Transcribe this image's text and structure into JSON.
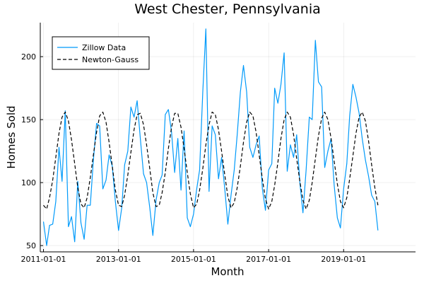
{
  "chart_data": {
    "type": "line",
    "title": "West Chester, Pennsylvania",
    "xlabel": "Month",
    "ylabel": "Homes Sold",
    "xlim": [
      "2010-12-01",
      "2020-12-01"
    ],
    "ylim": [
      45,
      227
    ],
    "x_ticks": [
      "2011-01-01",
      "2013-01-01",
      "2015-01-01",
      "2017-01-01",
      "2019-01-01"
    ],
    "y_ticks": [
      50,
      100,
      150,
      200
    ],
    "grid": true,
    "legend_position": "top-left",
    "series": [
      {
        "name": "Zillow Data",
        "color": "#009AFA",
        "style": "solid",
        "points": [
          [
            "2011-01-01",
            69
          ],
          [
            "2011-02-01",
            50
          ],
          [
            "2011-03-01",
            66
          ],
          [
            "2011-04-01",
            67
          ],
          [
            "2011-05-01",
            85
          ],
          [
            "2011-06-01",
            128
          ],
          [
            "2011-07-01",
            101
          ],
          [
            "2011-08-01",
            157
          ],
          [
            "2011-09-01",
            65
          ],
          [
            "2011-10-01",
            73
          ],
          [
            "2011-11-01",
            53
          ],
          [
            "2011-12-01",
            101
          ],
          [
            "2012-01-01",
            68
          ],
          [
            "2012-02-01",
            55
          ],
          [
            "2012-03-01",
            82
          ],
          [
            "2012-04-01",
            82
          ],
          [
            "2012-05-01",
            118
          ],
          [
            "2012-06-01",
            147
          ],
          [
            "2012-07-01",
            145
          ],
          [
            "2012-08-01",
            95
          ],
          [
            "2012-09-01",
            102
          ],
          [
            "2012-10-01",
            122
          ],
          [
            "2012-11-01",
            113
          ],
          [
            "2012-12-01",
            85
          ],
          [
            "2013-01-01",
            62
          ],
          [
            "2013-02-01",
            80
          ],
          [
            "2013-03-01",
            114
          ],
          [
            "2013-04-01",
            125
          ],
          [
            "2013-05-01",
            160
          ],
          [
            "2013-06-01",
            152
          ],
          [
            "2013-07-01",
            165
          ],
          [
            "2013-08-01",
            135
          ],
          [
            "2013-09-01",
            107
          ],
          [
            "2013-10-01",
            100
          ],
          [
            "2013-11-01",
            80
          ],
          [
            "2013-12-01",
            58
          ],
          [
            "2014-01-01",
            86
          ],
          [
            "2014-02-01",
            100
          ],
          [
            "2014-03-01",
            106
          ],
          [
            "2014-04-01",
            154
          ],
          [
            "2014-05-01",
            158
          ],
          [
            "2014-06-01",
            140
          ],
          [
            "2014-07-01",
            108
          ],
          [
            "2014-08-01",
            135
          ],
          [
            "2014-09-01",
            94
          ],
          [
            "2014-10-01",
            141
          ],
          [
            "2014-11-01",
            72
          ],
          [
            "2014-12-01",
            65
          ],
          [
            "2015-01-01",
            75
          ],
          [
            "2015-02-01",
            95
          ],
          [
            "2015-03-01",
            110
          ],
          [
            "2015-04-01",
            172
          ],
          [
            "2015-05-01",
            222
          ],
          [
            "2015-06-01",
            93
          ],
          [
            "2015-07-01",
            145
          ],
          [
            "2015-08-01",
            138
          ],
          [
            "2015-09-01",
            103
          ],
          [
            "2015-10-01",
            120
          ],
          [
            "2015-11-01",
            95
          ],
          [
            "2015-12-01",
            67
          ],
          [
            "2016-01-01",
            90
          ],
          [
            "2016-02-01",
            110
          ],
          [
            "2016-03-01",
            138
          ],
          [
            "2016-04-01",
            172
          ],
          [
            "2016-05-01",
            193
          ],
          [
            "2016-06-01",
            172
          ],
          [
            "2016-07-01",
            128
          ],
          [
            "2016-08-01",
            120
          ],
          [
            "2016-09-01",
            130
          ],
          [
            "2016-10-01",
            137
          ],
          [
            "2016-11-01",
            95
          ],
          [
            "2016-12-01",
            78
          ],
          [
            "2017-01-01",
            110
          ],
          [
            "2017-02-01",
            115
          ],
          [
            "2017-03-01",
            175
          ],
          [
            "2017-04-01",
            163
          ],
          [
            "2017-05-01",
            178
          ],
          [
            "2017-06-01",
            203
          ],
          [
            "2017-07-01",
            109
          ],
          [
            "2017-08-01",
            130
          ],
          [
            "2017-09-01",
            120
          ],
          [
            "2017-10-01",
            138
          ],
          [
            "2017-11-01",
            100
          ],
          [
            "2017-12-01",
            76
          ],
          [
            "2018-01-01",
            110
          ],
          [
            "2018-02-01",
            152
          ],
          [
            "2018-03-01",
            150
          ],
          [
            "2018-04-01",
            213
          ],
          [
            "2018-05-01",
            180
          ],
          [
            "2018-06-01",
            176
          ],
          [
            "2018-07-01",
            112
          ],
          [
            "2018-08-01",
            125
          ],
          [
            "2018-09-01",
            135
          ],
          [
            "2018-10-01",
            98
          ],
          [
            "2018-11-01",
            72
          ],
          [
            "2018-12-01",
            64
          ],
          [
            "2019-01-01",
            95
          ],
          [
            "2019-02-01",
            115
          ],
          [
            "2019-03-01",
            153
          ],
          [
            "2019-04-01",
            178
          ],
          [
            "2019-05-01",
            168
          ],
          [
            "2019-06-01",
            155
          ],
          [
            "2019-07-01",
            135
          ],
          [
            "2019-08-01",
            118
          ],
          [
            "2019-09-01",
            105
          ],
          [
            "2019-10-01",
            90
          ],
          [
            "2019-11-01",
            85
          ],
          [
            "2019-12-01",
            62
          ]
        ]
      },
      {
        "name": "Newton-Gauss",
        "color": "#000000",
        "style": "dashed",
        "points": [
          [
            "2011-01-01",
            82
          ],
          [
            "2011-02-01",
            79
          ],
          [
            "2011-03-01",
            88
          ],
          [
            "2011-04-01",
            102
          ],
          [
            "2011-05-01",
            120
          ],
          [
            "2011-06-01",
            139
          ],
          [
            "2011-07-01",
            152
          ],
          [
            "2011-08-01",
            156
          ],
          [
            "2011-09-01",
            149
          ],
          [
            "2011-10-01",
            134
          ],
          [
            "2011-11-01",
            115
          ],
          [
            "2011-12-01",
            96
          ],
          [
            "2012-01-01",
            83
          ],
          [
            "2012-02-01",
            80
          ],
          [
            "2012-03-01",
            88
          ],
          [
            "2012-04-01",
            104
          ],
          [
            "2012-05-01",
            122
          ],
          [
            "2012-06-01",
            140
          ],
          [
            "2012-07-01",
            153
          ],
          [
            "2012-08-01",
            156
          ],
          [
            "2012-09-01",
            148
          ],
          [
            "2012-10-01",
            132
          ],
          [
            "2012-11-01",
            113
          ],
          [
            "2012-12-01",
            94
          ],
          [
            "2013-01-01",
            82
          ],
          [
            "2013-02-01",
            81
          ],
          [
            "2013-03-01",
            90
          ],
          [
            "2013-04-01",
            106
          ],
          [
            "2013-05-01",
            124
          ],
          [
            "2013-06-01",
            142
          ],
          [
            "2013-07-01",
            154
          ],
          [
            "2013-08-01",
            155
          ],
          [
            "2013-09-01",
            146
          ],
          [
            "2013-10-01",
            130
          ],
          [
            "2013-11-01",
            111
          ],
          [
            "2013-12-01",
            92
          ],
          [
            "2014-01-01",
            81
          ],
          [
            "2014-02-01",
            82
          ],
          [
            "2014-03-01",
            92
          ],
          [
            "2014-04-01",
            108
          ],
          [
            "2014-05-01",
            127
          ],
          [
            "2014-06-01",
            144
          ],
          [
            "2014-07-01",
            155
          ],
          [
            "2014-08-01",
            155
          ],
          [
            "2014-09-01",
            144
          ],
          [
            "2014-10-01",
            127
          ],
          [
            "2014-11-01",
            108
          ],
          [
            "2014-12-01",
            91
          ],
          [
            "2015-01-01",
            80
          ],
          [
            "2015-02-01",
            83
          ],
          [
            "2015-03-01",
            94
          ],
          [
            "2015-04-01",
            111
          ],
          [
            "2015-05-01",
            130
          ],
          [
            "2015-06-01",
            146
          ],
          [
            "2015-07-01",
            156
          ],
          [
            "2015-08-01",
            154
          ],
          [
            "2015-09-01",
            142
          ],
          [
            "2015-10-01",
            125
          ],
          [
            "2015-11-01",
            106
          ],
          [
            "2015-12-01",
            89
          ],
          [
            "2016-01-01",
            80
          ],
          [
            "2016-02-01",
            84
          ],
          [
            "2016-03-01",
            96
          ],
          [
            "2016-04-01",
            113
          ],
          [
            "2016-05-01",
            132
          ],
          [
            "2016-06-01",
            148
          ],
          [
            "2016-07-01",
            156
          ],
          [
            "2016-08-01",
            153
          ],
          [
            "2016-09-01",
            140
          ],
          [
            "2016-10-01",
            122
          ],
          [
            "2016-11-01",
            103
          ],
          [
            "2016-12-01",
            87
          ],
          [
            "2017-01-01",
            79
          ],
          [
            "2017-02-01",
            85
          ],
          [
            "2017-03-01",
            98
          ],
          [
            "2017-04-01",
            116
          ],
          [
            "2017-05-01",
            135
          ],
          [
            "2017-06-01",
            150
          ],
          [
            "2017-07-01",
            156
          ],
          [
            "2017-08-01",
            152
          ],
          [
            "2017-09-01",
            138
          ],
          [
            "2017-10-01",
            119
          ],
          [
            "2017-11-01",
            101
          ],
          [
            "2017-12-01",
            86
          ],
          [
            "2018-01-01",
            79
          ],
          [
            "2018-02-01",
            86
          ],
          [
            "2018-03-01",
            100
          ],
          [
            "2018-04-01",
            119
          ],
          [
            "2018-05-01",
            137
          ],
          [
            "2018-06-01",
            151
          ],
          [
            "2018-07-01",
            156
          ],
          [
            "2018-08-01",
            150
          ],
          [
            "2018-09-01",
            135
          ],
          [
            "2018-10-01",
            117
          ],
          [
            "2018-11-01",
            99
          ],
          [
            "2018-12-01",
            85
          ],
          [
            "2019-01-01",
            80
          ],
          [
            "2019-02-01",
            88
          ],
          [
            "2019-03-01",
            103
          ],
          [
            "2019-04-01",
            121
          ],
          [
            "2019-05-01",
            139
          ],
          [
            "2019-06-01",
            152
          ],
          [
            "2019-07-01",
            156
          ],
          [
            "2019-08-01",
            149
          ],
          [
            "2019-09-01",
            133
          ],
          [
            "2019-10-01",
            114
          ],
          [
            "2019-11-01",
            96
          ],
          [
            "2019-12-01",
            82
          ]
        ]
      }
    ]
  }
}
